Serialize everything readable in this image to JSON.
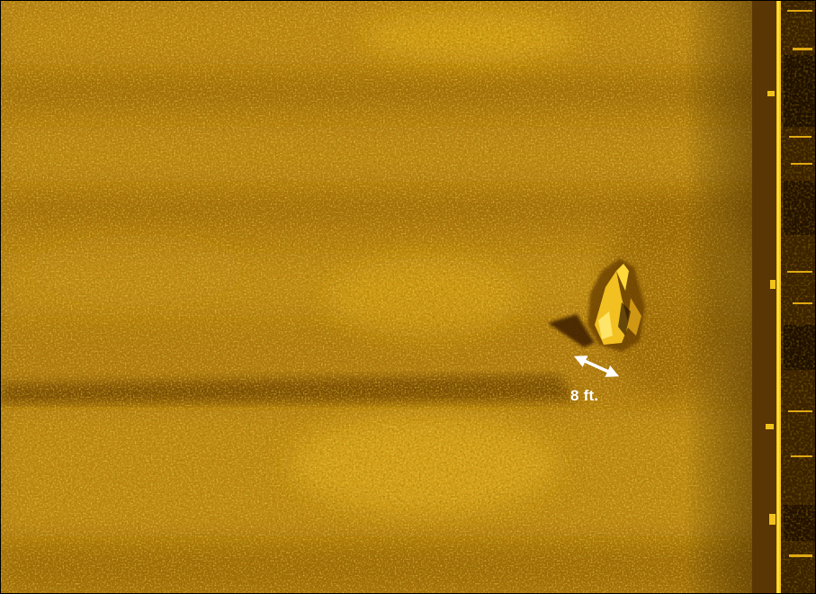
{
  "scale_annotation": {
    "label": "8 ft.",
    "arrow_color": "#ffffff"
  },
  "colors": {
    "seabed_base": "#b07a10",
    "seabed_bright": "#f2c21a",
    "seabed_dark": "#6e4206",
    "nadir_dark": "#2a1600",
    "nadir_bright_line": "#ffd21e"
  }
}
